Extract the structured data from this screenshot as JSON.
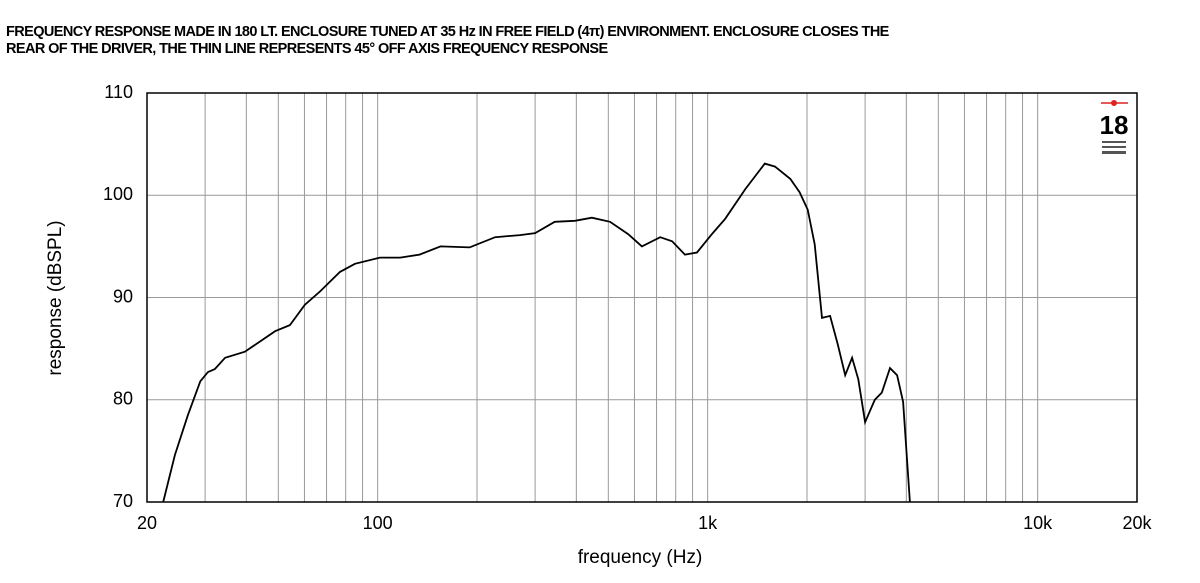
{
  "chart_data": {
    "type": "line",
    "title_lines": [
      "FREQUENCY RESPONSE MADE IN 180 LT. ENCLOSURE TUNED AT 35 Hz IN FREE FIELD (4π) ENVIRONMENT. ENCLOSURE CLOSES THE",
      "REAR OF THE DRIVER, THE THIN LINE REPRESENTS 45° OFF AXIS FREQUENCY RESPONSE"
    ],
    "logo": "18",
    "x_label": "frequency (Hz)",
    "y_label": "response (dBSPL)",
    "x_scale": "log",
    "grid": true,
    "xlim": [
      20,
      20000
    ],
    "ylim": [
      70,
      110
    ],
    "xticks": [
      20,
      100,
      {
        "value": 1000,
        "label": "1k"
      },
      {
        "value": 10000,
        "label": "10k"
      },
      {
        "value": 20000,
        "label": "20k"
      }
    ],
    "x_minor_ticks": [
      30,
      40,
      50,
      60,
      70,
      80,
      90,
      200,
      300,
      400,
      500,
      600,
      700,
      800,
      900,
      2000,
      3000,
      4000,
      5000,
      6000,
      7000,
      8000,
      9000
    ],
    "yticks": [
      70,
      80,
      90,
      100,
      110
    ],
    "series": [
      {
        "color": "#000000",
        "x": [
          22.4,
          24.3,
          26.6,
          29.0,
          30.6,
          32.1,
          34.5,
          39.6,
          44,
          48.9,
          54.2,
          60.2,
          66.9,
          76.9,
          85.3,
          101.6,
          117,
          134,
          155,
          190,
          227,
          270,
          300,
          344,
          396,
          446,
          506,
          574,
          632,
          718,
          780,
          853,
          928,
          1030,
          1130,
          1300,
          1490,
          1600,
          1780,
          1900,
          2010,
          2110,
          2220,
          2350,
          2480,
          2610,
          2740,
          2860,
          3000,
          3210,
          3370,
          3570,
          3750,
          3910,
          4100
        ],
        "values": [
          70,
          74.6,
          78.5,
          81.8,
          82.7,
          83.0,
          84.1,
          84.7,
          85.7,
          86.7,
          87.3,
          89.3,
          90.6,
          92.5,
          93.3,
          93.9,
          93.9,
          94.2,
          95,
          94.9,
          95.9,
          96.1,
          96.3,
          97.4,
          97.5,
          97.8,
          97.4,
          96.2,
          95,
          95.9,
          95.5,
          94.2,
          94.4,
          96.2,
          97.7,
          100.6,
          103.1,
          102.8,
          101.6,
          100.3,
          98.6,
          95.2,
          88,
          88.2,
          85.4,
          82.4,
          84.1,
          82,
          77.8,
          80,
          80.7,
          83.1,
          82.4,
          79.8,
          70
        ]
      }
    ]
  }
}
